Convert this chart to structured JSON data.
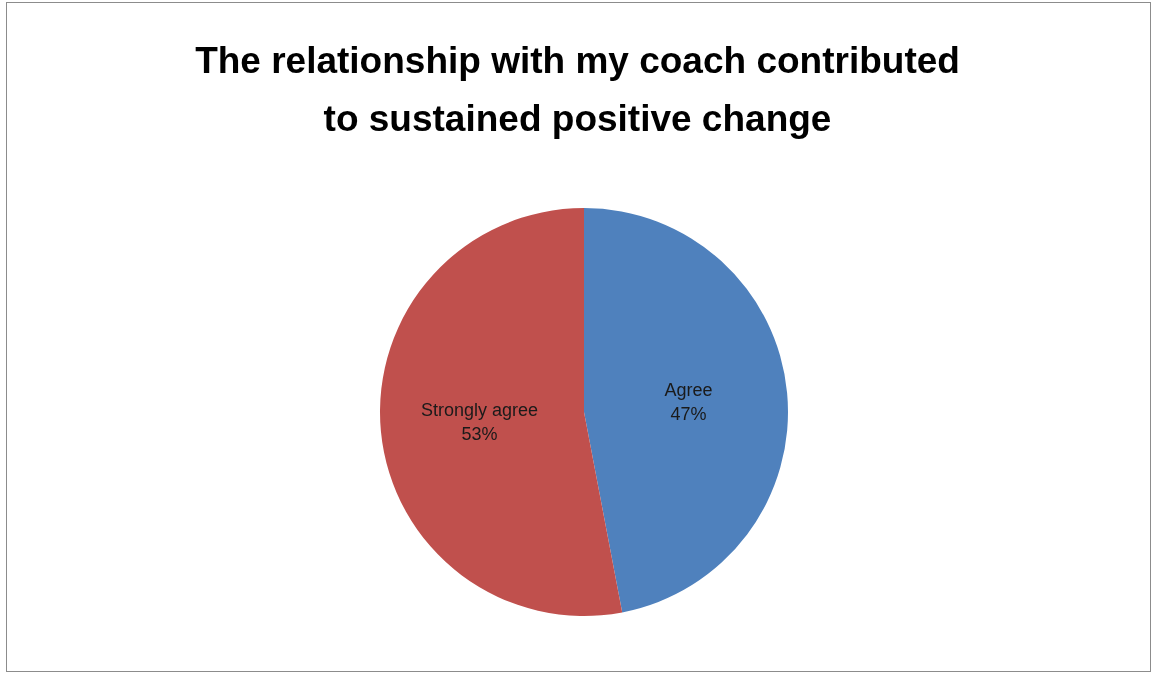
{
  "chart_data": {
    "type": "pie",
    "title": "The relationship with my coach contributed\nto sustained positive change",
    "categories": [
      "Agree",
      "Strongly agree"
    ],
    "values": [
      47,
      53
    ],
    "colors": [
      "#4f81bd",
      "#c0504d"
    ],
    "value_labels": [
      "47%",
      "53%"
    ],
    "legend": false
  }
}
